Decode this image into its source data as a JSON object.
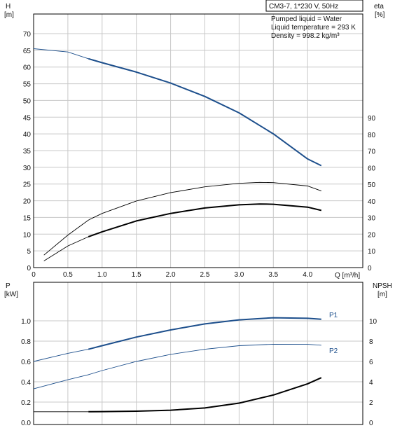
{
  "colors": {
    "grid": "#c8c8c8",
    "frame": "#000000",
    "blue_curve": "#1d4f8c",
    "black_curve": "#000000"
  },
  "header": {
    "pump": "CM3-7, 1*230 V, 50Hz",
    "liquid": "Pumped liquid = Water",
    "temperature": "Liquid temperature = 293 K",
    "density": "Density = 998.2 kg/m³"
  },
  "chart_data": [
    {
      "type": "line",
      "x_axis": {
        "label": "Q [m³/h]",
        "range": [
          0,
          4.5
        ],
        "ticks": [
          "0",
          "0.5",
          "1.0",
          "1.5",
          "2.0",
          "2.5",
          "3.0",
          "3.5",
          "4.0"
        ]
      },
      "y_left": {
        "label_top": "H",
        "label_unit": "[m]",
        "range": [
          0,
          75
        ],
        "ticks": [
          "0",
          "5",
          "10",
          "15",
          "20",
          "25",
          "30",
          "35",
          "40",
          "45",
          "50",
          "55",
          "60",
          "65",
          "70"
        ]
      },
      "y_right": {
        "label_top": "eta",
        "label_unit": "[%]",
        "range": [
          0,
          90
        ],
        "ticks": [
          "0",
          "10",
          "20",
          "30",
          "40",
          "50",
          "60",
          "70",
          "80",
          "90"
        ]
      },
      "grid": true,
      "series": [
        {
          "key": "head",
          "axis": "left",
          "points": [
            [
              0,
              65.5
            ],
            [
              0.5,
              64.5
            ],
            [
              0.8,
              62.5
            ],
            [
              1.0,
              61.3
            ],
            [
              1.5,
              58.5
            ],
            [
              2.0,
              55.2
            ],
            [
              2.5,
              51.2
            ],
            [
              3.0,
              46.3
            ],
            [
              3.5,
              40.0
            ],
            [
              4.0,
              32.5
            ],
            [
              4.2,
              30.5
            ]
          ],
          "bold_from": 0.8
        },
        {
          "key": "eta_pump",
          "axis": "right",
          "points": [
            [
              0.15,
              7.5
            ],
            [
              0.5,
              19.5
            ],
            [
              0.8,
              28.5
            ],
            [
              1.0,
              32.5
            ],
            [
              1.5,
              40.0
            ],
            [
              2.0,
              45.0
            ],
            [
              2.5,
              48.5
            ],
            [
              3.0,
              50.6
            ],
            [
              3.3,
              51.2
            ],
            [
              3.5,
              51.0
            ],
            [
              4.0,
              49.0
            ],
            [
              4.2,
              46.0
            ]
          ],
          "bold_from": 0.8
        },
        {
          "key": "eta_total",
          "axis": "right",
          "points": [
            [
              0.15,
              4.0
            ],
            [
              0.5,
              13.0
            ],
            [
              0.8,
              18.5
            ],
            [
              1.0,
              21.5
            ],
            [
              1.5,
              28.0
            ],
            [
              2.0,
              32.5
            ],
            [
              2.5,
              35.8
            ],
            [
              3.0,
              37.7
            ],
            [
              3.3,
              38.2
            ],
            [
              3.5,
              38.0
            ],
            [
              4.0,
              36.3
            ],
            [
              4.2,
              34.3
            ]
          ],
          "bold_from": 0.8
        }
      ]
    },
    {
      "type": "line",
      "x_axis": {
        "range": [
          0,
          4.5
        ]
      },
      "y_left": {
        "label_top": "P",
        "label_unit": "[kW]",
        "range": [
          0,
          1.2
        ],
        "ticks": [
          "0.0",
          "0.2",
          "0.4",
          "0.6",
          "0.8",
          "1.0"
        ]
      },
      "y_right": {
        "label_top": "NPSH",
        "label_unit": "[m]",
        "range": [
          0,
          12
        ],
        "ticks": [
          "0",
          "2",
          "4",
          "6",
          "8",
          "10"
        ]
      },
      "grid": true,
      "series": [
        {
          "key": "P1",
          "name": "P1",
          "axis": "left",
          "points": [
            [
              0,
              0.6
            ],
            [
              0.5,
              0.68
            ],
            [
              0.8,
              0.72
            ],
            [
              1.0,
              0.755
            ],
            [
              1.5,
              0.84
            ],
            [
              2.0,
              0.91
            ],
            [
              2.5,
              0.97
            ],
            [
              3.0,
              1.01
            ],
            [
              3.5,
              1.03
            ],
            [
              4.0,
              1.025
            ],
            [
              4.2,
              1.015
            ]
          ],
          "bold_from": 0.8
        },
        {
          "key": "P2",
          "name": "P2",
          "axis": "left",
          "points": [
            [
              0,
              0.33
            ],
            [
              0.5,
              0.42
            ],
            [
              0.8,
              0.47
            ],
            [
              1.0,
              0.51
            ],
            [
              1.5,
              0.6
            ],
            [
              2.0,
              0.67
            ],
            [
              2.5,
              0.72
            ],
            [
              3.0,
              0.755
            ],
            [
              3.5,
              0.77
            ],
            [
              4.0,
              0.768
            ],
            [
              4.2,
              0.76
            ]
          ],
          "bold_from": 99
        },
        {
          "key": "npsh",
          "axis": "right",
          "points": [
            [
              0,
              1.05
            ],
            [
              0.8,
              1.05
            ],
            [
              1.0,
              1.06
            ],
            [
              1.5,
              1.1
            ],
            [
              2.0,
              1.2
            ],
            [
              2.5,
              1.42
            ],
            [
              3.0,
              1.9
            ],
            [
              3.5,
              2.7
            ],
            [
              4.0,
              3.8
            ],
            [
              4.2,
              4.4
            ]
          ],
          "bold_from": 0.8
        }
      ]
    }
  ]
}
